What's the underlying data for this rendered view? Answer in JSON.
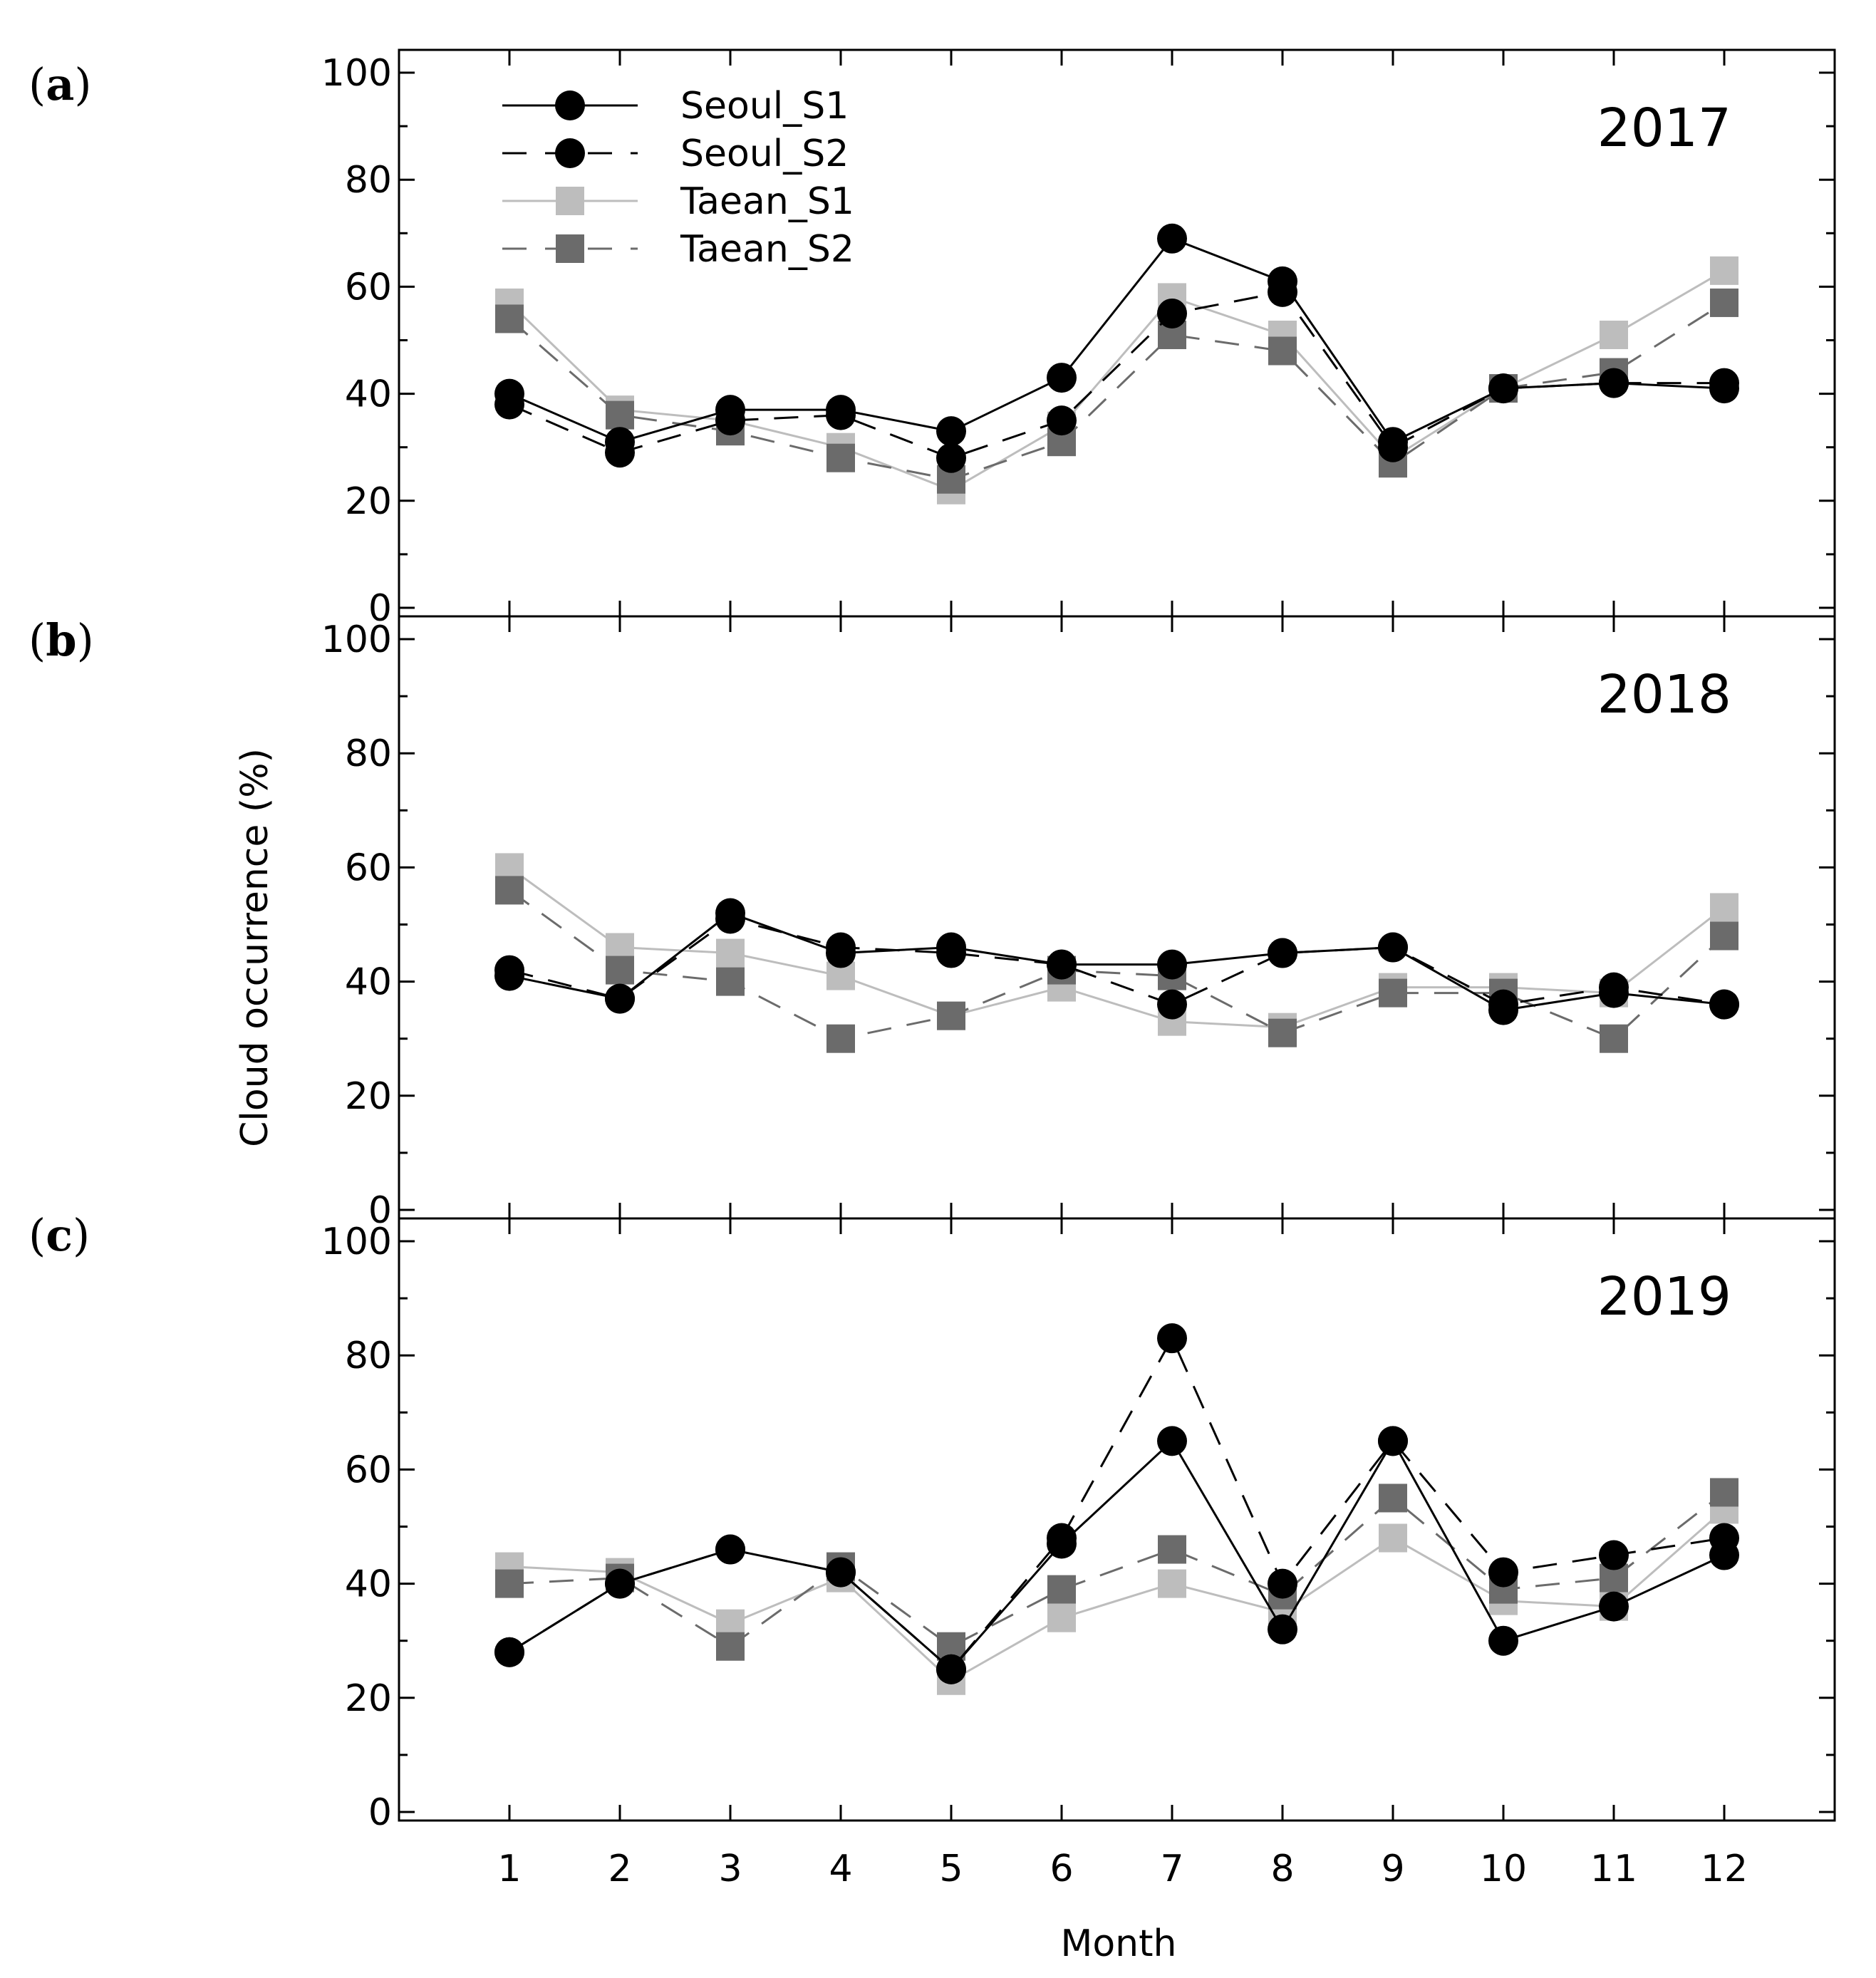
{
  "figure": {
    "ylabel": "Cloud occurrence (%)",
    "xlabel": "Month"
  },
  "legend": [
    {
      "name": "Seoul_S1",
      "color": "#000000",
      "marker": "circle",
      "dash": "solid"
    },
    {
      "name": "Seoul_S2",
      "color": "#000000",
      "marker": "circle",
      "dash": "dashed"
    },
    {
      "name": "Taean_S1",
      "color": "#bdbdbd",
      "marker": "square",
      "dash": "solid"
    },
    {
      "name": "Taean_S2",
      "color": "#6b6b6b",
      "marker": "square",
      "dash": "dashed"
    }
  ],
  "chart_data": [
    {
      "type": "line",
      "panel": "a",
      "title": "2017",
      "xlabel": "Month",
      "ylabel": "Cloud occurrence (%)",
      "ylim": [
        0,
        100
      ],
      "x": [
        1,
        2,
        3,
        4,
        5,
        6,
        7,
        8,
        9,
        10,
        11,
        12
      ],
      "yticks": [
        0,
        20,
        40,
        60,
        80,
        100
      ],
      "series": [
        {
          "name": "Seoul_S1",
          "values": [
            40,
            31,
            37,
            37,
            33,
            43,
            69,
            61,
            31,
            41,
            42,
            41
          ]
        },
        {
          "name": "Seoul_S2",
          "values": [
            38,
            29,
            35,
            36,
            28,
            35,
            55,
            59,
            30,
            41,
            42,
            42
          ]
        },
        {
          "name": "Taean_S1",
          "values": [
            57,
            37,
            35,
            30,
            22,
            34,
            58,
            51,
            28,
            41,
            51,
            63
          ]
        },
        {
          "name": "Taean_S2",
          "values": [
            54,
            36,
            33,
            28,
            24,
            31,
            51,
            48,
            27,
            41,
            44,
            57
          ]
        }
      ]
    },
    {
      "type": "line",
      "panel": "b",
      "title": "2018",
      "xlabel": "Month",
      "ylabel": "Cloud occurrence (%)",
      "ylim": [
        0,
        100
      ],
      "x": [
        1,
        2,
        3,
        4,
        5,
        6,
        7,
        8,
        9,
        10,
        11,
        12
      ],
      "yticks": [
        0,
        20,
        40,
        60,
        80,
        100
      ],
      "series": [
        {
          "name": "Seoul_S1",
          "values": [
            41,
            37,
            52,
            45,
            46,
            43,
            43,
            45,
            46,
            35,
            38,
            36
          ]
        },
        {
          "name": "Seoul_S2",
          "values": [
            42,
            37,
            51,
            46,
            45,
            43,
            36,
            45,
            46,
            36,
            39,
            36
          ]
        },
        {
          "name": "Taean_S1",
          "values": [
            60,
            46,
            45,
            41,
            34,
            39,
            33,
            32,
            39,
            39,
            38,
            53
          ]
        },
        {
          "name": "Taean_S2",
          "values": [
            56,
            42,
            40,
            30,
            34,
            42,
            41,
            31,
            38,
            38,
            30,
            48
          ]
        }
      ]
    },
    {
      "type": "line",
      "panel": "c",
      "title": "2019",
      "xlabel": "Month",
      "ylabel": "Cloud occurrence (%)",
      "ylim": [
        0,
        100
      ],
      "x": [
        1,
        2,
        3,
        4,
        5,
        6,
        7,
        8,
        9,
        10,
        11,
        12
      ],
      "yticks": [
        0,
        20,
        40,
        60,
        80,
        100
      ],
      "series": [
        {
          "name": "Seoul_S1",
          "values": [
            28,
            40,
            46,
            42,
            25,
            47,
            65,
            32,
            65,
            30,
            36,
            45
          ]
        },
        {
          "name": "Seoul_S2",
          "values": [
            28,
            40,
            46,
            42,
            25,
            48,
            83,
            40,
            65,
            42,
            45,
            48
          ]
        },
        {
          "name": "Taean_S1",
          "values": [
            43,
            42,
            33,
            41,
            23,
            34,
            40,
            35,
            48,
            37,
            36,
            53
          ]
        },
        {
          "name": "Taean_S2",
          "values": [
            40,
            41,
            29,
            43,
            29,
            39,
            46,
            38,
            55,
            39,
            41,
            56
          ]
        }
      ]
    }
  ]
}
